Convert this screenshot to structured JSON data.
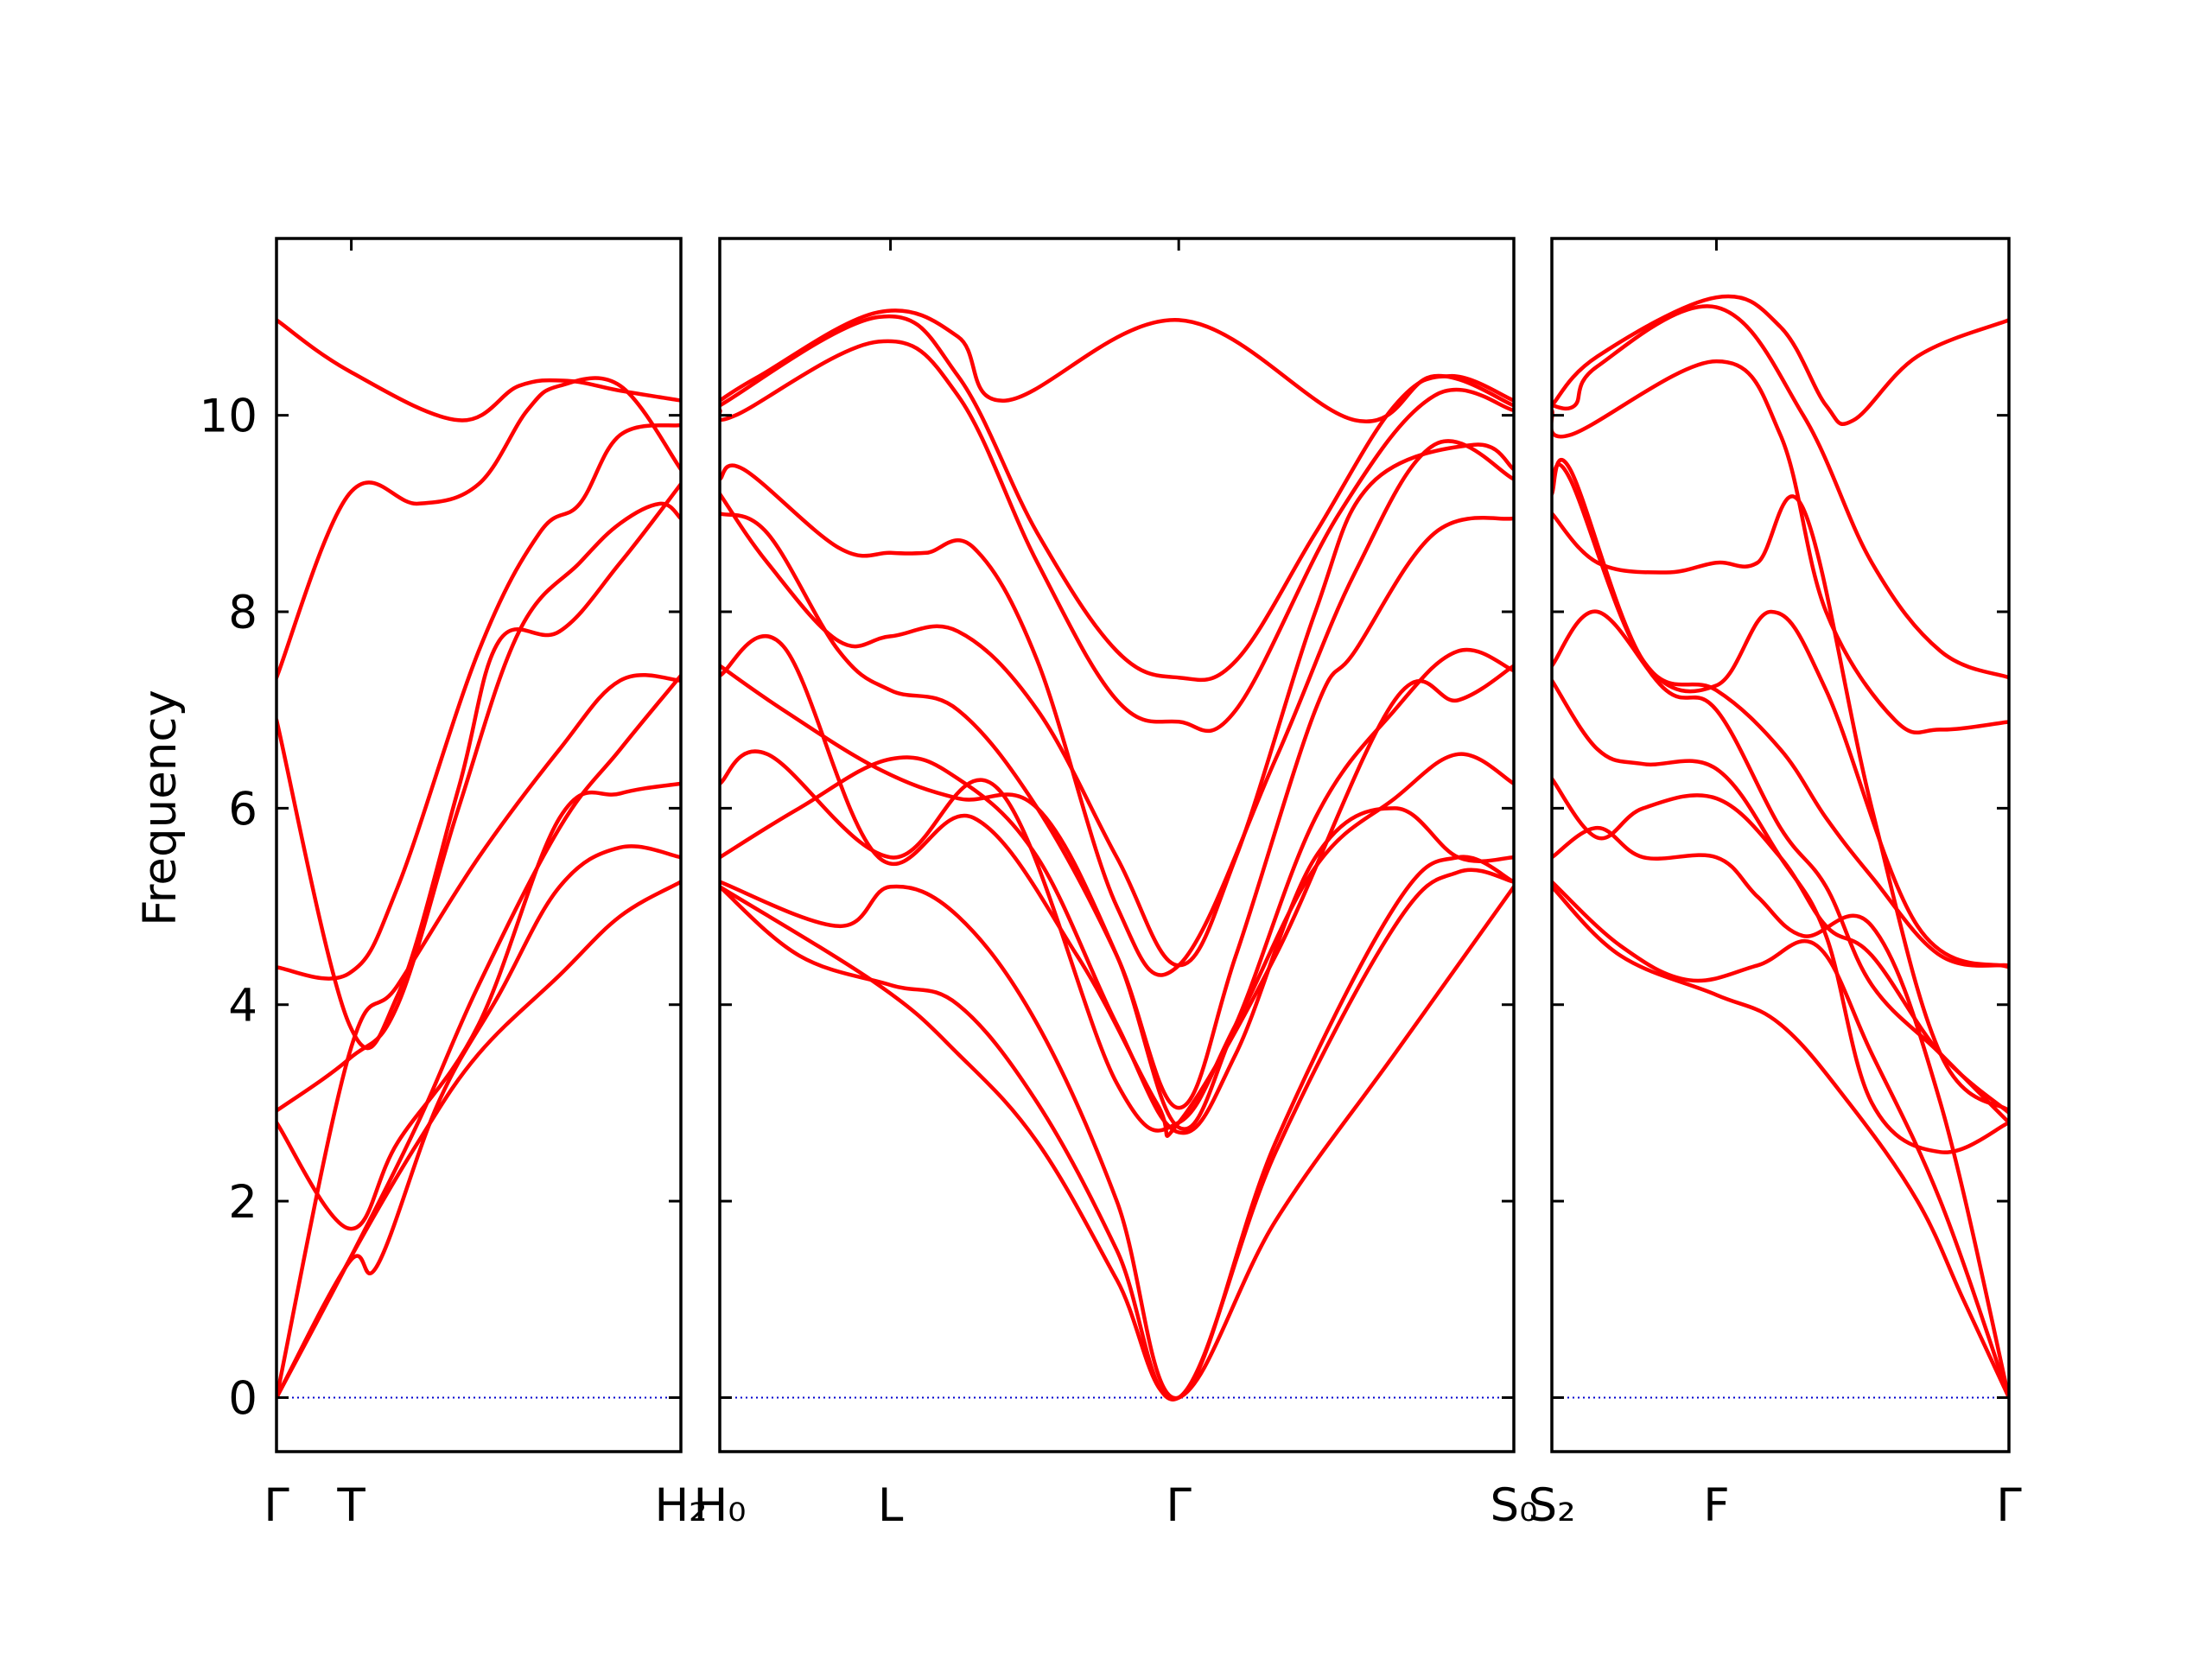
{
  "chart_data": {
    "type": "line",
    "title": "",
    "ylabel": "Frequency",
    "xlabel": "",
    "ylim": [
      -0.55,
      11.8
    ],
    "yticks": [
      0,
      2,
      4,
      6,
      8,
      10
    ],
    "grid": false,
    "legend": "none",
    "colors": {
      "bands": "#ff0000",
      "zero_line": "#0000cc",
      "axes": "#000000"
    },
    "panels": [
      {
        "xlim": [
          0,
          1
        ],
        "x_ticks": [
          0,
          0.185,
          1
        ],
        "x_tick_labels": [
          "Γ",
          "T",
          "H₂"
        ],
        "series": [
          {
            "x": [
              0,
              0.18,
              0.45,
              0.6,
              0.72,
              0.85,
              1
            ],
            "y": [
              10.97,
              10.45,
              9.95,
              10.3,
              10.35,
              10.25,
              10.15
            ]
          },
          {
            "x": [
              0,
              0.18,
              0.35,
              0.5,
              0.62,
              0.7,
              0.85,
              1
            ],
            "y": [
              7.33,
              9.2,
              9.1,
              9.3,
              10.05,
              10.3,
              10.3,
              9.45
            ]
          },
          {
            "x": [
              0,
              0.18,
              0.3,
              0.45,
              0.55,
              0.7,
              0.85,
              1
            ],
            "y": [
              6.9,
              3.8,
              4.1,
              6.2,
              7.7,
              7.8,
              8.5,
              9.3
            ]
          },
          {
            "x": [
              0,
              0.18,
              0.3,
              0.5,
              0.65,
              0.75,
              0.85,
              1
            ],
            "y": [
              4.38,
              4.32,
              5.2,
              7.6,
              8.8,
              9.1,
              9.8,
              9.9
            ]
          },
          {
            "x": [
              0,
              0.18,
              0.3,
              0.45,
              0.6,
              0.75,
              0.85,
              0.95,
              1
            ],
            "y": [
              2.92,
              3.45,
              4.0,
              6.0,
              7.8,
              8.5,
              8.9,
              9.1,
              8.95
            ]
          },
          {
            "x": [
              0,
              0.18,
              0.3,
              0.5,
              0.7,
              0.85,
              1
            ],
            "y": [
              0,
              3.5,
              4.2,
              5.5,
              6.6,
              7.3,
              7.3
            ]
          },
          {
            "x": [
              0,
              0.18,
              0.35,
              0.5,
              0.7,
              0.85,
              1
            ],
            "y": [
              0,
              1.4,
              2.8,
              4.2,
              5.8,
              6.6,
              7.35
            ]
          },
          {
            "x": [
              0,
              0.18,
              0.3,
              0.5,
              0.7,
              0.85,
              1
            ],
            "y": [
              2.8,
              1.72,
              2.6,
              3.8,
              5.9,
              6.15,
              6.25
            ]
          },
          {
            "x": [
              0,
              0.18,
              0.25,
              0.4,
              0.55,
              0.7,
              0.85,
              1
            ],
            "y": [
              0,
              1.38,
              1.35,
              3.0,
              4.1,
              5.2,
              5.6,
              5.5
            ]
          },
          {
            "x": [
              0,
              0.18,
              0.35,
              0.5,
              0.7,
              0.85,
              1
            ],
            "y": [
              0,
              1.4,
              2.6,
              3.5,
              4.3,
              4.9,
              5.25
            ]
          }
        ]
      },
      {
        "xlim": [
          0,
          1
        ],
        "x_ticks": [
          0,
          0.215,
          0.578,
          1
        ],
        "x_tick_labels": [
          "H₀",
          "L",
          "Γ",
          "S₀"
        ],
        "series": [
          {
            "x": [
              0,
              0.05,
              0.2,
              0.3,
              0.36,
              0.578,
              0.8,
              0.9,
              1
            ],
            "y": [
              10.15,
              10.4,
              11.05,
              10.8,
              10.15,
              10.97,
              9.95,
              10.4,
              10.1
            ]
          },
          {
            "x": [
              0,
              0.2,
              0.3,
              0.4,
              0.5,
              0.578,
              0.65,
              0.75,
              0.85,
              0.92,
              1
            ],
            "y": [
              10.1,
              11.0,
              10.4,
              8.8,
              7.6,
              7.33,
              7.5,
              8.8,
              10.1,
              10.4,
              10.15
            ]
          },
          {
            "x": [
              0,
              0.02,
              0.2,
              0.3,
              0.4,
              0.5,
              0.578,
              0.65,
              0.78,
              0.9,
              1
            ],
            "y": [
              10.05,
              10.0,
              10.75,
              10.2,
              8.5,
              7.1,
              6.88,
              7.0,
              9.0,
              10.2,
              10.05
            ]
          },
          {
            "x": [
              0,
              0.03,
              0.15,
              0.215,
              0.26,
              0.32,
              0.4,
              0.5,
              0.578,
              0.7,
              0.8,
              0.9,
              1
            ],
            "y": [
              9.35,
              9.45,
              8.65,
              8.6,
              8.6,
              8.65,
              7.5,
              5.0,
              4.4,
              6.5,
              8.4,
              9.7,
              9.35
            ]
          },
          {
            "x": [
              0,
              0.06,
              0.15,
              0.215,
              0.3,
              0.4,
              0.5,
              0.578,
              0.65,
              0.75,
              0.82,
              0.95,
              1
            ],
            "y": [
              9.2,
              8.5,
              7.7,
              7.75,
              7.8,
              7.0,
              5.5,
              4.4,
              5.5,
              8.0,
              9.3,
              9.7,
              9.45
            ]
          },
          {
            "x": [
              0,
              0.06,
              0.15,
              0.215,
              0.3,
              0.4,
              0.5,
              0.578,
              0.65,
              0.75,
              0.8,
              0.9,
              1
            ],
            "y": [
              9.0,
              8.8,
              7.6,
              7.2,
              7.0,
              6.0,
              4.5,
              2.95,
              4.5,
              7.0,
              7.6,
              8.8,
              8.95
            ]
          },
          {
            "x": [
              0,
              0.08,
              0.2,
              0.3,
              0.4,
              0.5,
              0.578,
              0.65,
              0.75,
              0.85,
              0.93,
              1
            ],
            "y": [
              7.45,
              7.0,
              6.4,
              6.1,
              6.0,
              4.5,
              2.75,
              3.8,
              5.9,
              7.0,
              7.6,
              7.4
            ]
          },
          {
            "x": [
              0,
              0.08,
              0.2,
              0.32,
              0.45,
              0.55,
              0.578,
              0.7,
              0.85,
              0.93,
              1
            ],
            "y": [
              7.35,
              7.65,
              5.5,
              5.9,
              4.5,
              3.0,
              2.8,
              4.5,
              7.1,
              7.1,
              7.45
            ]
          },
          {
            "x": [
              0,
              0.06,
              0.215,
              0.35,
              0.5,
              0.578,
              0.65,
              0.75,
              0.85,
              0.93,
              1
            ],
            "y": [
              6.25,
              6.55,
              5.5,
              6.2,
              3.2,
              2.8,
              3.8,
              5.4,
              6.1,
              6.55,
              6.25
            ]
          },
          {
            "x": [
              0,
              0.1,
              0.215,
              0.3,
              0.4,
              0.5,
              0.578,
              0.65,
              0.75,
              0.85,
              0.93,
              1
            ],
            "y": [
              5.5,
              6.0,
              6.5,
              6.3,
              5.5,
              3.8,
              2.7,
              3.5,
              5.5,
              6.0,
              5.5,
              5.5
            ]
          },
          {
            "x": [
              0,
              0.15,
              0.215,
              0.3,
              0.4,
              0.5,
              0.578,
              0.7,
              0.85,
              0.93,
              1
            ],
            "y": [
              5.25,
              4.8,
              5.2,
              4.9,
              3.8,
              2.0,
              0,
              2.6,
              5.0,
              5.5,
              5.25
            ]
          },
          {
            "x": [
              0,
              0.1,
              0.215,
              0.3,
              0.4,
              0.5,
              0.578,
              0.7,
              0.85,
              0.93,
              1
            ],
            "y": [
              5.2,
              4.5,
              4.2,
              4.0,
              3.0,
              1.5,
              0,
              2.5,
              4.8,
              5.35,
              5.25
            ]
          },
          {
            "x": [
              0,
              0.2,
              0.3,
              0.4,
              0.5,
              0.578,
              0.7,
              0.85,
              1
            ],
            "y": [
              5.2,
              4.2,
              3.5,
              2.6,
              1.2,
              0,
              1.8,
              3.5,
              5.2
            ]
          }
        ]
      },
      {
        "xlim": [
          0,
          1
        ],
        "x_ticks": [
          0,
          0.36,
          1
        ],
        "x_tick_labels": [
          "S₂",
          "F",
          "Γ"
        ],
        "series": [
          {
            "x": [
              0,
              0.1,
              0.36,
              0.5,
              0.6,
              0.66,
              0.8,
              1
            ],
            "y": [
              10.1,
              10.6,
              11.2,
              10.9,
              10.1,
              9.95,
              10.6,
              10.97
            ]
          },
          {
            "x": [
              0,
              0.05,
              0.1,
              0.36,
              0.55,
              0.7,
              0.85,
              1
            ],
            "y": [
              10.1,
              10.1,
              10.5,
              11.1,
              10.0,
              8.5,
              7.6,
              7.33
            ]
          },
          {
            "x": [
              0,
              0.04,
              0.36,
              0.5,
              0.6,
              0.75,
              0.85,
              1
            ],
            "y": [
              10.05,
              9.8,
              10.55,
              9.8,
              8.0,
              6.9,
              6.8,
              6.88
            ]
          },
          {
            "x": [
              0,
              0.04,
              0.2,
              0.36,
              0.48,
              0.6,
              0.8,
              1
            ],
            "y": [
              9.35,
              9.35,
              7.5,
              7.25,
              8.0,
              7.2,
              4.8,
              4.38
            ]
          },
          {
            "x": [
              0,
              0.04,
              0.2,
              0.36,
              0.5,
              0.6,
              0.7,
              0.85,
              1
            ],
            "y": [
              9.2,
              9.45,
              7.5,
              7.2,
              6.6,
              5.9,
              5.3,
              4.5,
              4.4
            ]
          },
          {
            "x": [
              0,
              0.1,
              0.25,
              0.36,
              0.45,
              0.55,
              0.7,
              0.85,
              1
            ],
            "y": [
              9.0,
              8.5,
              8.4,
              8.5,
              8.5,
              9.05,
              6.0,
              3.5,
              2.92
            ]
          },
          {
            "x": [
              0,
              0.1,
              0.25,
              0.36,
              0.5,
              0.6,
              0.7,
              0.85,
              1
            ],
            "y": [
              7.45,
              8.0,
              7.2,
              7.0,
              5.8,
              5.2,
              4.2,
              3.5,
              2.8
            ]
          },
          {
            "x": [
              0,
              0.1,
              0.2,
              0.36,
              0.5,
              0.6,
              0.7,
              0.85,
              1
            ],
            "y": [
              7.3,
              6.6,
              6.45,
              6.4,
              5.5,
              4.7,
              3.0,
              2.5,
              2.8
            ]
          },
          {
            "x": [
              0,
              0.1,
              0.2,
              0.36,
              0.5,
              0.6,
              0.7,
              0.85,
              1
            ],
            "y": [
              6.3,
              5.7,
              6.0,
              6.1,
              5.5,
              4.8,
              4.5,
              3.5,
              2.9
            ]
          },
          {
            "x": [
              0,
              0.1,
              0.2,
              0.36,
              0.45,
              0.55,
              0.7,
              0.85,
              1
            ],
            "y": [
              5.5,
              5.8,
              5.5,
              5.5,
              5.1,
              4.7,
              4.8,
              3.0,
              0
            ]
          },
          {
            "x": [
              0,
              0.15,
              0.3,
              0.45,
              0.58,
              0.7,
              0.85,
              1
            ],
            "y": [
              5.25,
              4.6,
              4.25,
              4.4,
              4.6,
              3.5,
              2.0,
              0
            ]
          },
          {
            "x": [
              0,
              0.15,
              0.36,
              0.5,
              0.65,
              0.8,
              0.9,
              1
            ],
            "y": [
              5.2,
              4.5,
              4.1,
              3.8,
              3.0,
              2.0,
              1.0,
              0
            ]
          }
        ]
      }
    ]
  }
}
